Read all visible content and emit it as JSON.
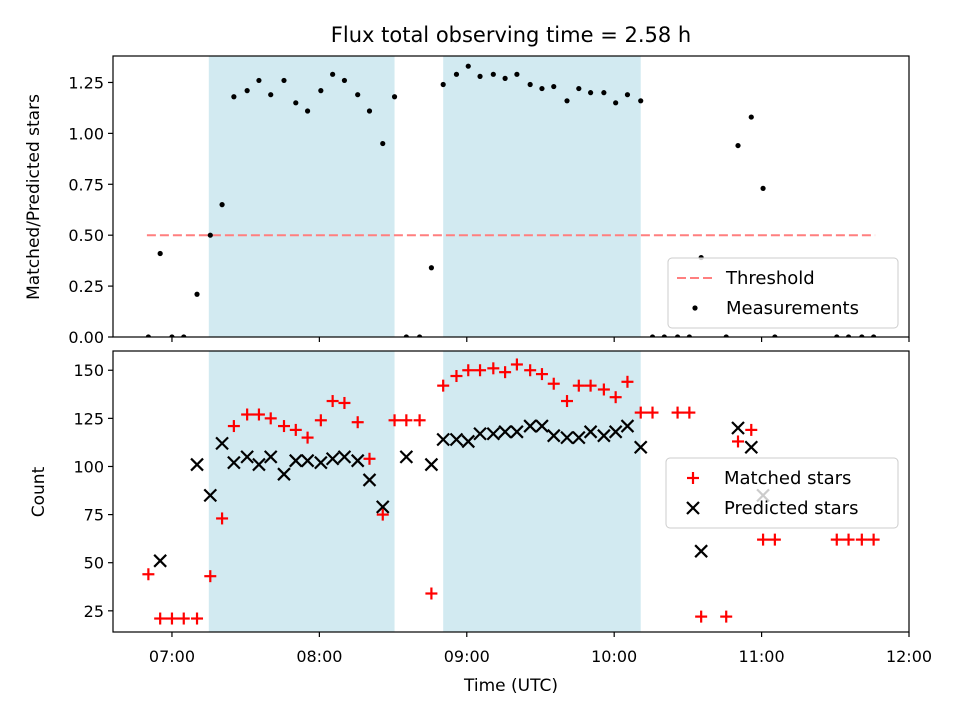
{
  "chart_data": {
    "type": "scatter",
    "title": "Flux total observing time = 2.58 h",
    "xlabel": "Time (UTC)",
    "x_ticks": [
      "07:00",
      "08:00",
      "09:00",
      "10:00",
      "11:00",
      "12:00"
    ],
    "x_tick_values": [
      7.0,
      8.0,
      9.0,
      10.0,
      11.0,
      12.0
    ],
    "xlim": [
      6.6,
      12.0
    ],
    "shaded_intervals": [
      [
        7.25,
        8.51
      ],
      [
        8.84,
        10.18
      ]
    ],
    "shade_color": "#add8e6",
    "panels": [
      {
        "ylabel": "Matched/Predicted stars",
        "ylim": [
          0,
          1.38
        ],
        "y_ticks": [
          "0.00",
          "0.25",
          "0.50",
          "0.75",
          "1.00",
          "1.25"
        ],
        "y_tick_values": [
          0,
          0.25,
          0.5,
          0.75,
          1.0,
          1.25
        ],
        "threshold": {
          "name": "Threshold",
          "y": 0.5,
          "x_range": [
            6.83,
            11.77
          ],
          "color": "#ff7f7f"
        },
        "legend": {
          "position": "lower-right",
          "entries": [
            "Threshold",
            "Measurements"
          ]
        },
        "series": [
          {
            "name": "Measurements",
            "marker": "dot",
            "color": "#000000",
            "x": [
              6.84,
              6.92,
              7.0,
              7.08,
              7.17,
              7.26,
              7.34,
              7.42,
              7.51,
              7.59,
              7.67,
              7.76,
              7.84,
              7.92,
              8.01,
              8.09,
              8.17,
              8.26,
              8.34,
              8.43,
              8.51,
              8.59,
              8.68,
              8.76,
              8.84,
              8.93,
              9.01,
              9.09,
              9.18,
              9.26,
              9.34,
              9.43,
              9.51,
              9.59,
              9.68,
              9.76,
              9.84,
              9.93,
              10.01,
              10.09,
              10.18,
              10.26,
              10.34,
              10.43,
              10.51,
              10.59,
              10.76,
              10.84,
              10.93,
              11.01,
              11.09,
              11.51,
              11.59,
              11.68,
              11.76
            ],
            "y": [
              0.0,
              0.41,
              0.0,
              0.0,
              0.21,
              0.5,
              0.65,
              1.18,
              1.21,
              1.26,
              1.19,
              1.26,
              1.15,
              1.11,
              1.21,
              1.29,
              1.26,
              1.19,
              1.11,
              0.95,
              1.18,
              0.0,
              0.0,
              0.34,
              1.24,
              1.29,
              1.33,
              1.28,
              1.29,
              1.27,
              1.29,
              1.24,
              1.22,
              1.23,
              1.16,
              1.22,
              1.2,
              1.2,
              1.15,
              1.19,
              1.16,
              0.0,
              0.0,
              0.0,
              0.0,
              0.39,
              0.0,
              0.94,
              1.08,
              0.73,
              0.0,
              0.0,
              0.0,
              0.0,
              0.0
            ]
          }
        ]
      },
      {
        "ylabel": "Count",
        "ylim": [
          14,
          160
        ],
        "y_ticks": [
          "25",
          "50",
          "75",
          "100",
          "125",
          "150"
        ],
        "y_tick_values": [
          25,
          50,
          75,
          100,
          125,
          150
        ],
        "legend": {
          "position": "right",
          "entries": [
            "Matched stars",
            "Predicted stars"
          ]
        },
        "series": [
          {
            "name": "Matched stars",
            "marker": "plus",
            "color": "#ff0000",
            "x": [
              6.84,
              6.92,
              7.0,
              7.08,
              7.17,
              7.26,
              7.34,
              7.42,
              7.51,
              7.59,
              7.67,
              7.76,
              7.84,
              7.92,
              8.01,
              8.09,
              8.17,
              8.26,
              8.34,
              8.43,
              8.51,
              8.59,
              8.68,
              8.76,
              8.84,
              8.93,
              9.01,
              9.09,
              9.18,
              9.26,
              9.34,
              9.43,
              9.51,
              9.59,
              9.68,
              9.76,
              9.84,
              9.93,
              10.01,
              10.09,
              10.18,
              10.26,
              10.43,
              10.51,
              10.59,
              10.76,
              10.84,
              10.93,
              11.01,
              11.09,
              11.51,
              11.59,
              11.68,
              11.76
            ],
            "y": [
              44,
              21,
              21,
              21,
              21,
              43,
              73,
              121,
              127,
              127,
              125,
              121,
              119,
              115,
              124,
              134,
              133,
              123,
              104,
              75,
              124,
              124,
              124,
              34,
              142,
              147,
              150,
              150,
              151,
              149,
              153,
              150,
              148,
              143,
              134,
              142,
              142,
              140,
              136,
              144,
              128,
              128,
              128,
              128,
              22,
              22,
              113,
              119,
              62,
              62,
              62,
              62,
              62,
              62
            ]
          },
          {
            "name": "Predicted stars",
            "marker": "x",
            "color": "#000000",
            "x": [
              6.92,
              7.17,
              7.26,
              7.34,
              7.42,
              7.51,
              7.59,
              7.67,
              7.76,
              7.84,
              7.92,
              8.01,
              8.09,
              8.17,
              8.26,
              8.34,
              8.43,
              8.59,
              8.76,
              8.84,
              8.93,
              9.01,
              9.09,
              9.18,
              9.26,
              9.34,
              9.43,
              9.51,
              9.59,
              9.68,
              9.76,
              9.84,
              9.93,
              10.01,
              10.09,
              10.18,
              10.59,
              10.84,
              10.93,
              11.01
            ],
            "y": [
              51,
              101,
              85,
              112,
              102,
              105,
              101,
              105,
              96,
              103,
              103,
              102,
              104,
              105,
              103,
              93,
              79,
              105,
              101,
              114,
              114,
              113,
              117,
              117,
              118,
              118,
              121,
              121,
              116,
              115,
              115,
              118,
              116,
              118,
              121,
              110,
              56,
              120,
              110,
              85
            ]
          }
        ]
      }
    ]
  }
}
